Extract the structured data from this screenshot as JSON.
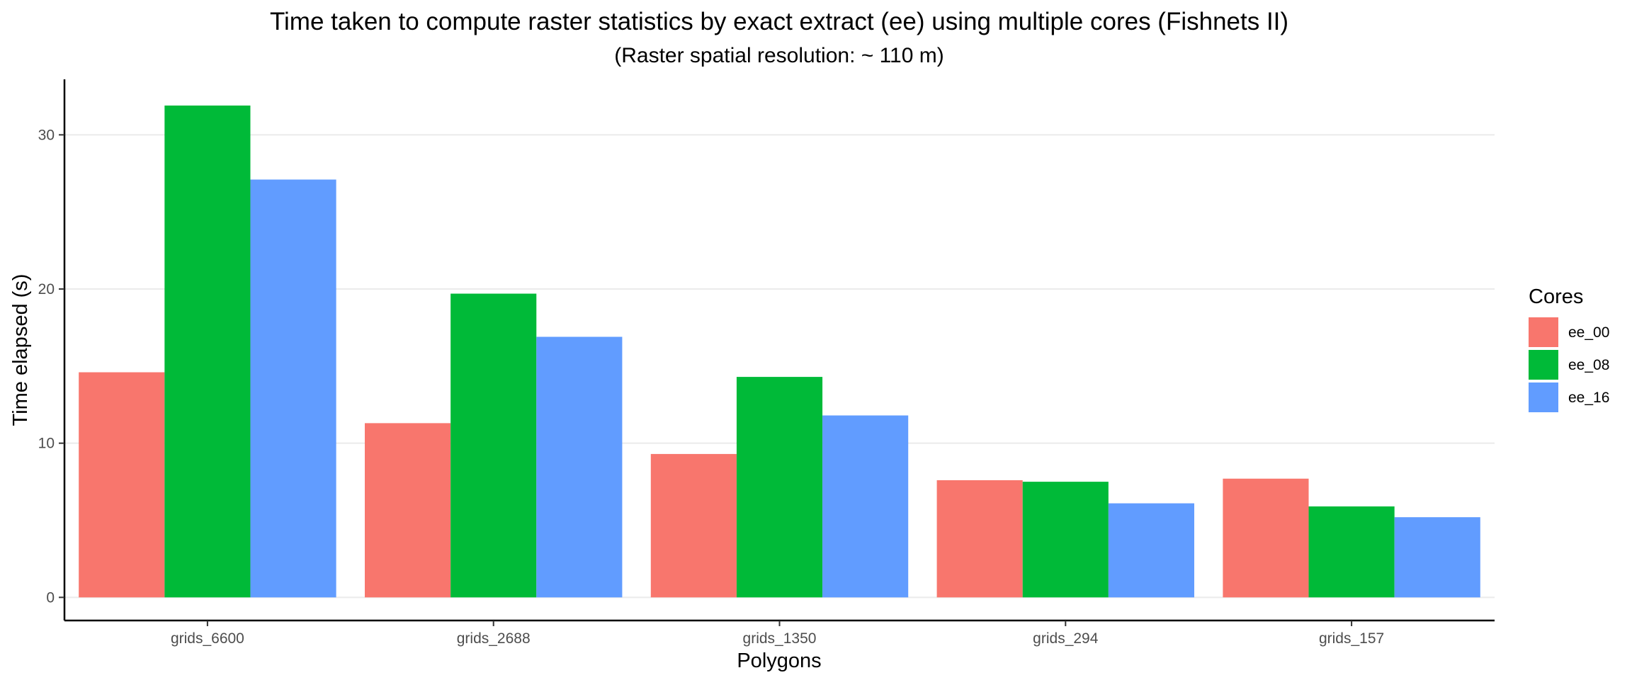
{
  "chart_data": {
    "type": "bar",
    "title": "Time taken to compute raster statistics by exact extract (ee) using multiple cores (Fishnets II)",
    "subtitle": "(Raster spatial resolution: ~ 110 m)",
    "xlabel": "Polygons",
    "ylabel": "Time elapsed (s)",
    "categories": [
      "grids_6600",
      "grids_2688",
      "grids_1350",
      "grids_294",
      "grids_157"
    ],
    "series": [
      {
        "name": "ee_00",
        "color": "#F8766D",
        "values": [
          14.6,
          11.3,
          9.3,
          7.6,
          7.7
        ]
      },
      {
        "name": "ee_08",
        "color": "#00BA38",
        "values": [
          31.9,
          19.7,
          14.3,
          7.5,
          5.9
        ]
      },
      {
        "name": "ee_16",
        "color": "#619CFF",
        "values": [
          27.1,
          16.9,
          11.8,
          6.1,
          5.2
        ]
      }
    ],
    "ylim": [
      -1.5,
      33.6
    ],
    "yticks": [
      0,
      10,
      20,
      30
    ],
    "grid": "horizontal",
    "legend": {
      "title": "Cores",
      "position": "right"
    }
  }
}
